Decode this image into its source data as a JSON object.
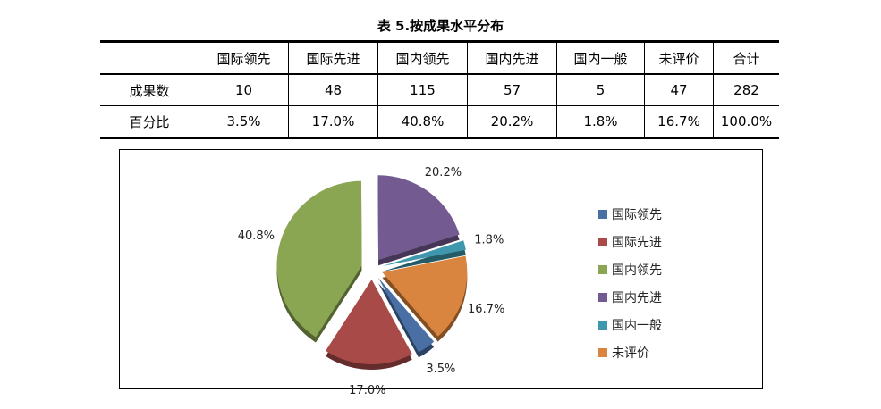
{
  "title": "表 5.按成果水平分布",
  "table": {
    "headers": [
      "",
      "国际领先",
      "国际先进",
      "国内领先",
      "国内先进",
      "国内一般",
      "未评价",
      "合计"
    ],
    "rows": [
      [
        "成果数",
        "10",
        "48",
        "115",
        "57",
        "5",
        "47",
        "282"
      ],
      [
        "百分比",
        "3.5%",
        "17.0%",
        "40.8%",
        "20.2%",
        "1.8%",
        "16.7%",
        "100.0%"
      ]
    ]
  },
  "chart_data": {
    "type": "pie",
    "categories": [
      "国际领先",
      "国际先进",
      "国内领先",
      "国内先进",
      "国内一般",
      "未评价"
    ],
    "values": [
      3.5,
      17.0,
      40.8,
      20.2,
      1.8,
      16.7
    ],
    "labels": [
      "3.5%",
      "17.0%",
      "40.8%",
      "20.2%",
      "1.8%",
      "16.7%"
    ],
    "colors": [
      "#4a6fa5",
      "#a84a48",
      "#8aa652",
      "#735a91",
      "#3f97ad",
      "#d9853f"
    ],
    "exploded": true,
    "legend": "right"
  }
}
